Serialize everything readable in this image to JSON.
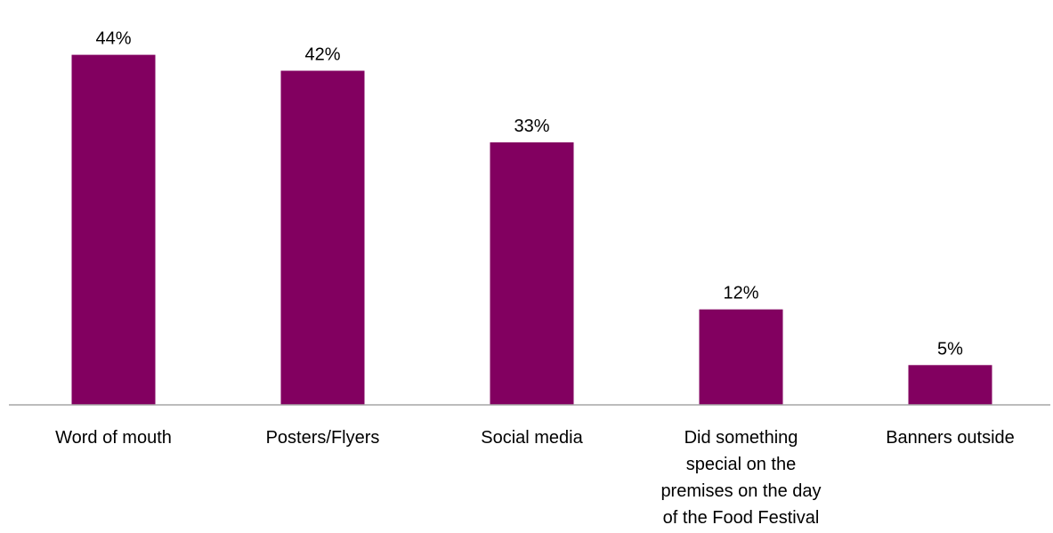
{
  "chart_data": {
    "type": "bar",
    "categories": [
      [
        "Word of mouth"
      ],
      [
        "Posters/Flyers"
      ],
      [
        "Social media"
      ],
      [
        "Did something",
        "special on the",
        "premises on the day",
        "of the Food Festival"
      ],
      [
        "Banners outside"
      ]
    ],
    "values": [
      44,
      42,
      33,
      12,
      5
    ],
    "value_labels": [
      "44%",
      "42%",
      "33%",
      "12%",
      "5%"
    ],
    "ylim": [
      0,
      50
    ],
    "grid": false,
    "legend": "none",
    "colors": {
      "bar": "#820060",
      "axis": "#a6a6a6",
      "text": "#000000"
    }
  }
}
